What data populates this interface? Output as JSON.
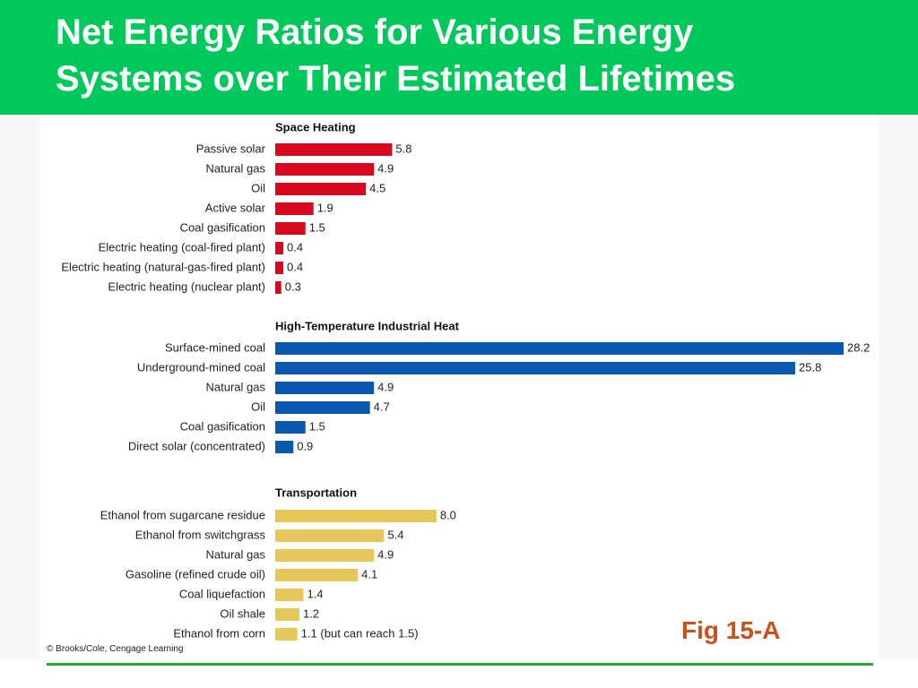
{
  "slide": {
    "title_line1": "Net Energy Ratios for Various Energy",
    "title_line2": "Systems over Their Estimated Lifetimes",
    "credit": "© Brooks/Cole, Cengage Learning",
    "fig_label": "Fig 15-A"
  },
  "colors": {
    "header_green": "#00c85a",
    "fig_label": "#c8521a",
    "footer_rule": "#22aa33",
    "space_heating": "#d7091e",
    "industrial_heat": "#0a58b0",
    "transportation": "#e6c75a"
  },
  "chart_data": {
    "type": "bar",
    "orientation": "horizontal",
    "xlim": [
      0,
      28.2
    ],
    "groups": [
      {
        "name": "Space Heating",
        "color": "#d7091e",
        "categories": [
          "Passive solar",
          "Natural gas",
          "Oil",
          "Active solar",
          "Coal gasification",
          "Electric heating (coal-fired plant)",
          "Electric heating (natural-gas-fired plant)",
          "Electric heating (nuclear plant)"
        ],
        "values": [
          5.8,
          4.9,
          4.5,
          1.9,
          1.5,
          0.4,
          0.4,
          0.3
        ],
        "labels": [
          "5.8",
          "4.9",
          "4.5",
          "1.9",
          "1.5",
          "0.4",
          "0.4",
          "0.3"
        ]
      },
      {
        "name": "High-Temperature Industrial Heat",
        "color": "#0a58b0",
        "categories": [
          "Surface-mined coal",
          "Underground-mined coal",
          "Natural gas",
          "Oil",
          "Coal gasification",
          "Direct solar (concentrated)"
        ],
        "values": [
          28.2,
          25.8,
          4.9,
          4.7,
          1.5,
          0.9
        ],
        "labels": [
          "28.2",
          "25.8",
          "4.9",
          "4.7",
          "1.5",
          "0.9"
        ]
      },
      {
        "name": "Transportation",
        "color": "#e6c75a",
        "categories": [
          "Ethanol from sugarcane residue",
          "Ethanol from switchgrass",
          "Natural gas",
          "Gasoline (refined crude oil)",
          "Coal liquefaction",
          "Oil shale",
          "Ethanol from corn"
        ],
        "values": [
          8.0,
          5.4,
          4.9,
          4.1,
          1.4,
          1.2,
          1.1
        ],
        "labels": [
          "8.0",
          "5.4",
          "4.9",
          "4.1",
          "1.4",
          "1.2",
          "1.1 (but can reach 1.5)"
        ]
      }
    ]
  }
}
